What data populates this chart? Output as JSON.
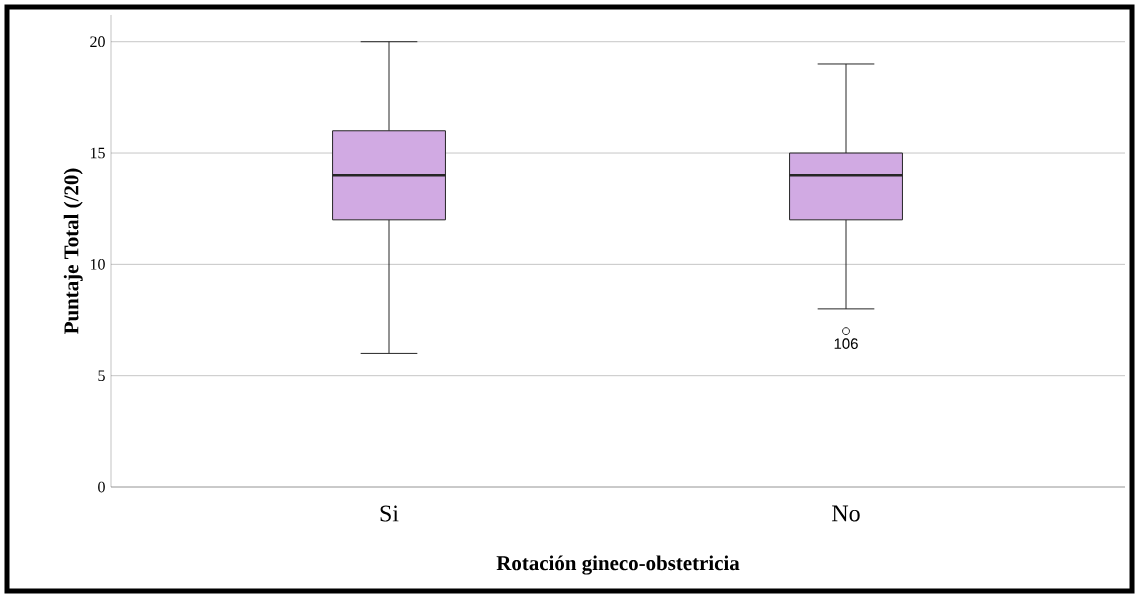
{
  "chart_data": {
    "type": "box",
    "xlabel": "Rotación gineco-obstetricia",
    "ylabel": "Puntaje Total (/20)",
    "categories": [
      "Si",
      "No"
    ],
    "series": [
      {
        "color": "#d1aae3",
        "boxes": [
          {
            "low": 6,
            "q1": 12,
            "median": 14,
            "q3": 16,
            "high": 20
          },
          {
            "low": 8,
            "q1": 12,
            "median": 14,
            "q3": 15,
            "high": 19,
            "outliers": [
              7
            ]
          }
        ]
      }
    ],
    "ylim": [
      0,
      21.2
    ],
    "yticks": [
      0,
      5,
      10,
      15,
      20
    ],
    "grid": "y",
    "annotations": [
      "106"
    ]
  }
}
